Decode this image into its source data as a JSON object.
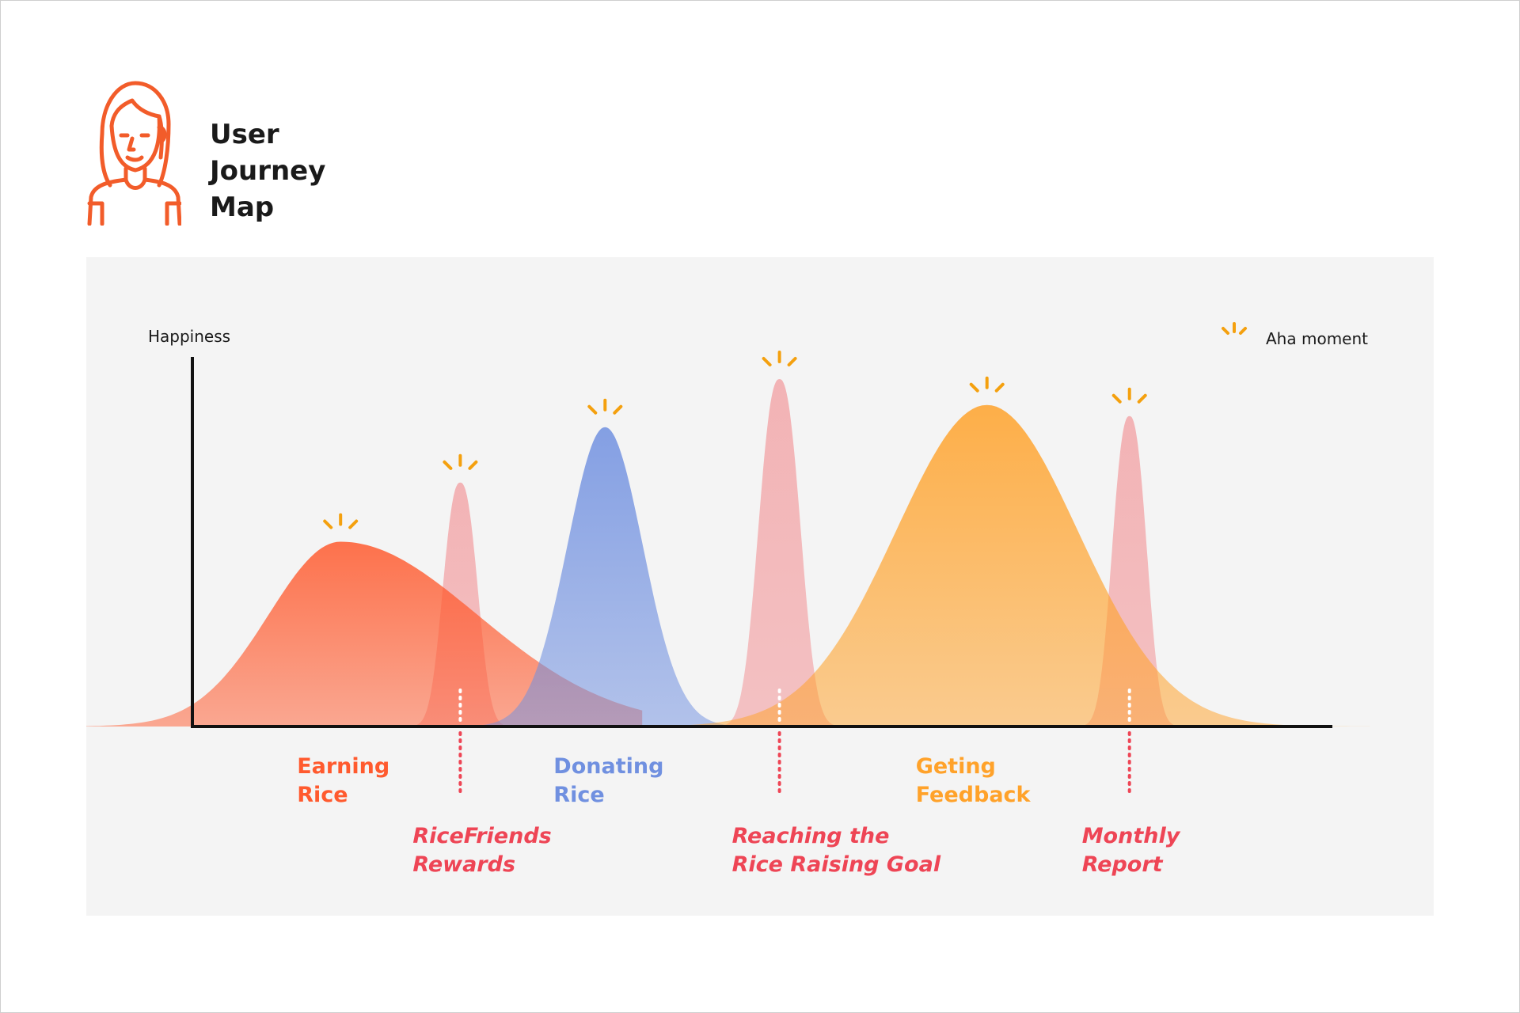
{
  "header": {
    "title_lines": [
      "User",
      "Journey",
      "Map"
    ],
    "avatar_icon": "user-avatar-icon",
    "accent": "#F25C2A"
  },
  "chart": {
    "y_axis_label": "Happiness",
    "legend": {
      "icon": "aha-burst-icon",
      "label": "Aha moment"
    }
  },
  "chart_data": {
    "type": "area",
    "ylabel": "Happiness",
    "xlabel": "",
    "grid": false,
    "legend_position": "top-right",
    "stages": [
      {
        "name": "Earning Rice",
        "lines": [
          "Earning",
          "Rice"
        ],
        "kind": "phase",
        "color": "#FF5A2E",
        "peak": 0.5,
        "center": 0.13,
        "spread": 0.063,
        "aha": true
      },
      {
        "name": "RiceFriends Rewards",
        "lines": [
          "RiceFriends",
          "Rewards"
        ],
        "kind": "moment",
        "color": "#F2979A",
        "peak": 0.66,
        "center": 0.235,
        "spread": 0.014,
        "aha": true
      },
      {
        "name": "Donating Rice",
        "lines": [
          "Donating",
          "Rice"
        ],
        "kind": "phase",
        "color": "#7090E0",
        "peak": 0.81,
        "center": 0.362,
        "spread": 0.033,
        "aha": true
      },
      {
        "name": "Reaching the Rice Raising Goal",
        "lines": [
          "Reaching the",
          "Rice Raising Goal"
        ],
        "kind": "moment",
        "color": "#F2979A",
        "peak": 0.94,
        "center": 0.515,
        "spread": 0.017,
        "aha": true
      },
      {
        "name": "Geting Feedback",
        "lines": [
          "Geting",
          "Feedback"
        ],
        "kind": "phase",
        "color": "#FFA22A",
        "peak": 0.87,
        "center": 0.697,
        "spread": 0.08,
        "aha": true
      },
      {
        "name": "Monthly Report",
        "lines": [
          "Monthly",
          "Report"
        ],
        "kind": "moment",
        "color": "#F2979A",
        "peak": 0.84,
        "center": 0.822,
        "spread": 0.014,
        "aha": true
      }
    ],
    "colors": {
      "moment_label": "#EE4555",
      "aha": "#F4A00E",
      "axis": "#111111"
    }
  }
}
